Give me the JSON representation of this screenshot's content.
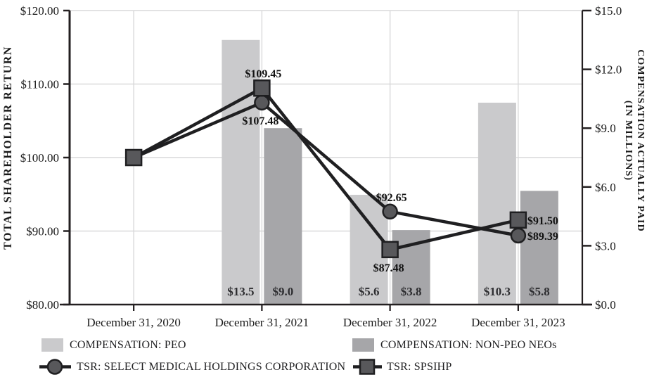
{
  "chart_data": {
    "type": "bar+line",
    "categories": [
      "December 31, 2020",
      "December 31, 2021",
      "December 31, 2022",
      "December 31, 2023"
    ],
    "bar_series": [
      {
        "name": "COMPENSATION: PEO",
        "color": "#cacacc",
        "values": [
          null,
          13.5,
          5.6,
          10.3
        ],
        "value_labels": [
          "",
          "$13.5",
          "$5.6",
          "$10.3"
        ]
      },
      {
        "name": "COMPENSATION: NON-PEO NEOs",
        "color": "#a6a6a9",
        "values": [
          null,
          9.0,
          3.8,
          5.8
        ],
        "value_labels": [
          "",
          "$9.0",
          "$3.8",
          "$5.8"
        ]
      }
    ],
    "line_series": [
      {
        "name": "TSR: SELECT MEDICAL HOLDINGS CORPORATION",
        "marker": "circle",
        "values": [
          100,
          107.48,
          92.65,
          89.39
        ],
        "value_labels": [
          "",
          "$107.48",
          "$92.65",
          "$89.39"
        ],
        "label_placement": [
          "none",
          "below",
          "above",
          "right"
        ]
      },
      {
        "name": "TSR: SPSIHP",
        "marker": "square",
        "values": [
          100,
          109.45,
          87.48,
          91.5
        ],
        "value_labels": [
          "",
          "$109.45",
          "$87.48",
          "$91.50"
        ],
        "label_placement": [
          "none",
          "above",
          "below",
          "right"
        ]
      }
    ],
    "left_axis": {
      "title": "TOTAL SHAREHOLDER RETURN",
      "min": 80,
      "max": 120,
      "tick_step": 10,
      "tick_labels": [
        "$120.00",
        "$110.00",
        "$100.00",
        "$90.00",
        "$80.00"
      ]
    },
    "right_axis": {
      "title_line1": "COMPENSATION ACTUALLY PAID",
      "title_line2": "(IN MILLIONS)",
      "min": 0,
      "max": 15,
      "tick_step": 3,
      "tick_labels": [
        "$15.0",
        "$12.0",
        "$9.0",
        "$6.0",
        "$3.0",
        "$0.0"
      ]
    },
    "grid": {
      "horizontal_left_values": [
        120,
        110,
        100,
        90
      ],
      "vertical": "category-centers",
      "gridline_color": "#d9d9da"
    },
    "colors": {
      "line": "#1f1f21",
      "marker_fill": "#58585b",
      "marker_stroke": "#1f1f21",
      "axis": "#231f20",
      "background": "#ffffff"
    }
  },
  "legend": {
    "items": [
      {
        "label": "COMPENSATION: PEO",
        "swatch": "bar-light"
      },
      {
        "label": "COMPENSATION: NON-PEO NEOs",
        "swatch": "bar-medium"
      },
      {
        "label": "TSR: SELECT MEDICAL HOLDINGS CORPORATION",
        "swatch": "line-circle"
      },
      {
        "label": "TSR: SPSIHP",
        "swatch": "line-square"
      }
    ]
  }
}
